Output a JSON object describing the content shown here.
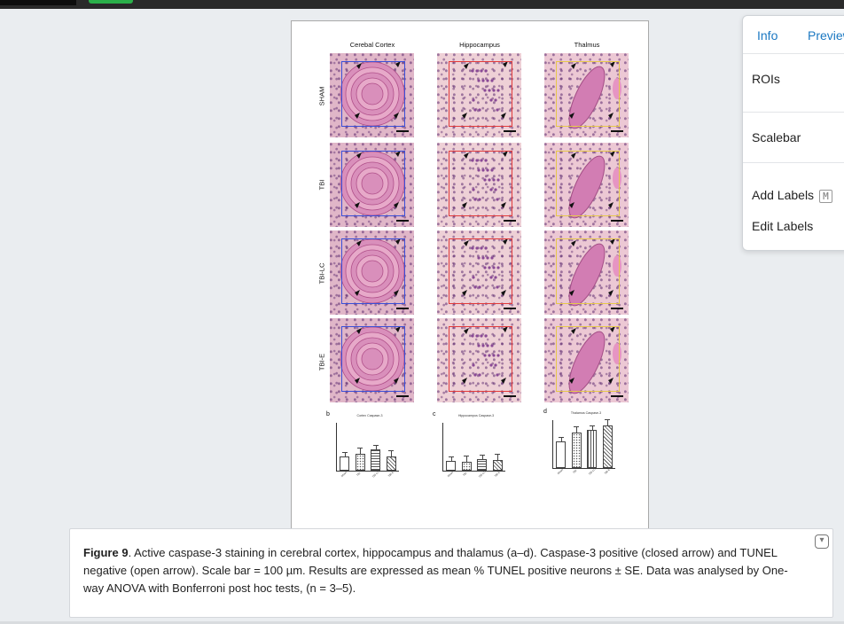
{
  "menu": {
    "tabs": [
      "Info",
      "Preview"
    ],
    "items": [
      "ROIs",
      "Scalebar",
      "Add Labels",
      "Edit Labels"
    ],
    "add_labels_shortcut": "M"
  },
  "figure": {
    "column_titles": [
      "Cerebal Cortex",
      "Hippocampus",
      "Thalmus"
    ],
    "row_labels": [
      "SHAM",
      "TBI",
      "TBI-LC",
      "TBI-E"
    ],
    "roi_colors": [
      "#3a4fd8",
      "#e23b3b",
      "#e6c84a"
    ],
    "panel_letters": [
      "b",
      "c",
      "d"
    ],
    "chart_titles": [
      "Cortex Caspase-3",
      "Hippocampus Caspase-3",
      "Thalamus Caspase-3"
    ]
  },
  "chart_data": [
    {
      "type": "bar",
      "title": "Cortex Caspase-3",
      "categories": [
        "Sham",
        "TBI",
        "TBI-LC",
        "TBI-E"
      ],
      "values": [
        30,
        35,
        45,
        30
      ],
      "ylim": [
        0,
        100
      ]
    },
    {
      "type": "bar",
      "title": "Hippocampus Caspase-3",
      "categories": [
        "Sham",
        "TBI",
        "TBI-LC",
        "TBI-E"
      ],
      "values": [
        20,
        18,
        25,
        22
      ],
      "ylim": [
        0,
        100
      ]
    },
    {
      "type": "bar",
      "title": "Thalamus Caspase-3",
      "categories": [
        "Sham",
        "TBI",
        "TBI-LC",
        "TBI-E"
      ],
      "values": [
        55,
        75,
        80,
        88
      ],
      "ylim": [
        0,
        100
      ]
    }
  ],
  "caption": {
    "label": "Figure 9",
    "text": ". Active caspase-3 staining in cerebral cortex, hippocampus and thalamus (a–d). Caspase-3 positive (closed arrow) and TUNEL negative (open arrow). Scale bar = 100 µm. Results are expressed as mean % TUNEL positive neurons ± SE. Data was analysed by One-way ANOVA with Bonferroni post hoc tests, (n = 3–5).",
    "toggle_icon": "collapse-icon"
  }
}
